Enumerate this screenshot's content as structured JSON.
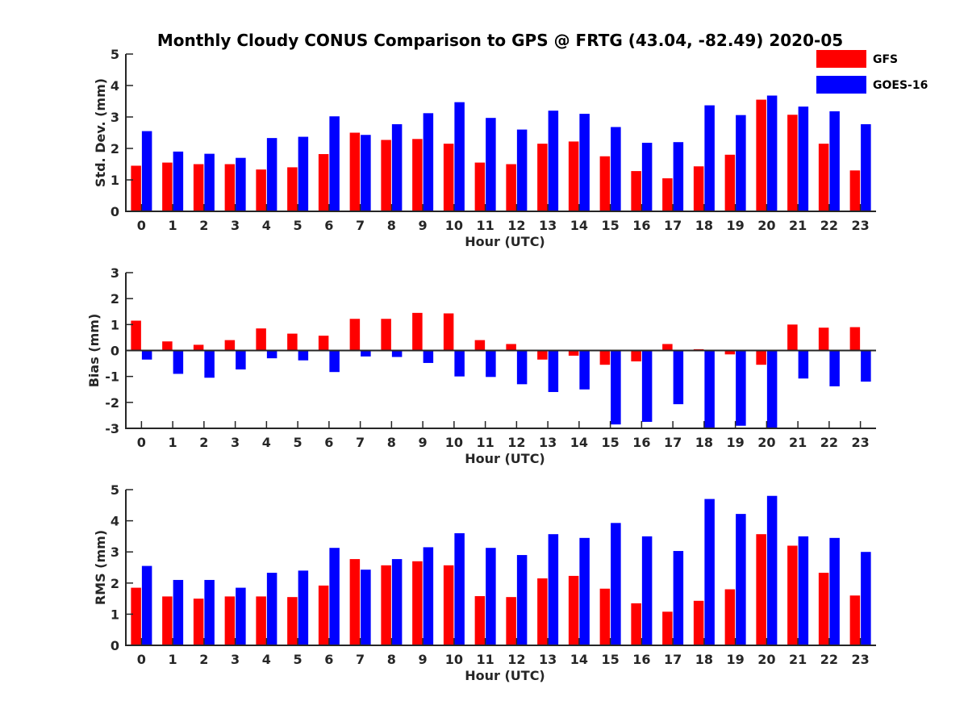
{
  "title": "Monthly Cloudy CONUS Comparison to GPS @ FRTG (43.04, -82.49) 2020-05",
  "colors": {
    "gfs": "#ff0000",
    "goes": "#0000ff",
    "axis": "#262626"
  },
  "chart_data": [
    {
      "type": "bar",
      "ylabel": "Std. Dev. (mm)",
      "xlabel": "Hour (UTC)",
      "ylim": [
        0,
        5
      ],
      "yticks": [
        0,
        1,
        2,
        3,
        4,
        5
      ],
      "categories": [
        "0",
        "1",
        "2",
        "3",
        "4",
        "5",
        "6",
        "7",
        "8",
        "9",
        "10",
        "11",
        "12",
        "13",
        "14",
        "15",
        "16",
        "17",
        "18",
        "19",
        "20",
        "21",
        "22",
        "23"
      ],
      "series": [
        {
          "name": "GFS",
          "values": [
            1.45,
            1.55,
            1.5,
            1.5,
            1.33,
            1.4,
            1.82,
            2.5,
            2.27,
            2.3,
            2.15,
            1.55,
            1.5,
            2.15,
            2.22,
            1.75,
            1.28,
            1.05,
            1.43,
            1.8,
            3.55,
            3.07,
            2.15,
            1.3
          ]
        },
        {
          "name": "GOES-16",
          "values": [
            2.55,
            1.9,
            1.83,
            1.7,
            2.33,
            2.37,
            3.02,
            2.43,
            2.77,
            3.12,
            3.47,
            2.97,
            2.6,
            3.2,
            3.1,
            2.68,
            2.18,
            2.2,
            3.37,
            3.06,
            3.68,
            3.33,
            3.18,
            2.77
          ]
        }
      ]
    },
    {
      "type": "bar",
      "ylabel": "Bias (mm)",
      "xlabel": "Hour (UTC)",
      "ylim": [
        -3,
        3
      ],
      "yticks": [
        -3,
        -2,
        -1,
        0,
        1,
        2,
        3
      ],
      "categories": [
        "0",
        "1",
        "2",
        "3",
        "4",
        "5",
        "6",
        "7",
        "8",
        "9",
        "10",
        "11",
        "12",
        "13",
        "14",
        "15",
        "16",
        "17",
        "18",
        "19",
        "20",
        "21",
        "22",
        "23"
      ],
      "series": [
        {
          "name": "GFS",
          "values": [
            1.15,
            0.35,
            0.22,
            0.4,
            0.85,
            0.65,
            0.57,
            1.22,
            1.22,
            1.45,
            1.43,
            0.4,
            0.25,
            -0.35,
            -0.2,
            -0.55,
            -0.42,
            0.25,
            0.05,
            -0.15,
            -0.55,
            1.0,
            0.88,
            0.9
          ]
        },
        {
          "name": "GOES-16",
          "values": [
            -0.35,
            -0.9,
            -1.05,
            -0.73,
            -0.3,
            -0.38,
            -0.83,
            -0.23,
            -0.25,
            -0.48,
            -1.0,
            -1.02,
            -1.3,
            -1.6,
            -1.5,
            -2.85,
            -2.75,
            -2.07,
            -3.0,
            -2.9,
            -3.0,
            -1.08,
            -1.38,
            -1.2
          ]
        }
      ]
    },
    {
      "type": "bar",
      "ylabel": "RMS (mm)",
      "xlabel": "Hour (UTC)",
      "ylim": [
        0,
        5
      ],
      "yticks": [
        0,
        1,
        2,
        3,
        4,
        5
      ],
      "categories": [
        "0",
        "1",
        "2",
        "3",
        "4",
        "5",
        "6",
        "7",
        "8",
        "9",
        "10",
        "11",
        "12",
        "13",
        "14",
        "15",
        "16",
        "17",
        "18",
        "19",
        "20",
        "21",
        "22",
        "23"
      ],
      "series": [
        {
          "name": "GFS",
          "values": [
            1.85,
            1.57,
            1.5,
            1.57,
            1.57,
            1.55,
            1.92,
            2.77,
            2.57,
            2.7,
            2.57,
            1.58,
            1.55,
            2.15,
            2.23,
            1.82,
            1.35,
            1.08,
            1.43,
            1.8,
            3.57,
            3.2,
            2.33,
            1.6
          ]
        },
        {
          "name": "GOES-16",
          "values": [
            2.55,
            2.1,
            2.1,
            1.85,
            2.33,
            2.4,
            3.13,
            2.43,
            2.77,
            3.15,
            3.6,
            3.13,
            2.9,
            3.57,
            3.45,
            3.93,
            3.5,
            3.03,
            4.7,
            4.22,
            4.8,
            3.5,
            3.45,
            3.0
          ]
        }
      ]
    }
  ],
  "legend": [
    {
      "label": "GFS",
      "color": "#ff0000"
    },
    {
      "label": "GOES-16",
      "color": "#0000ff"
    }
  ]
}
